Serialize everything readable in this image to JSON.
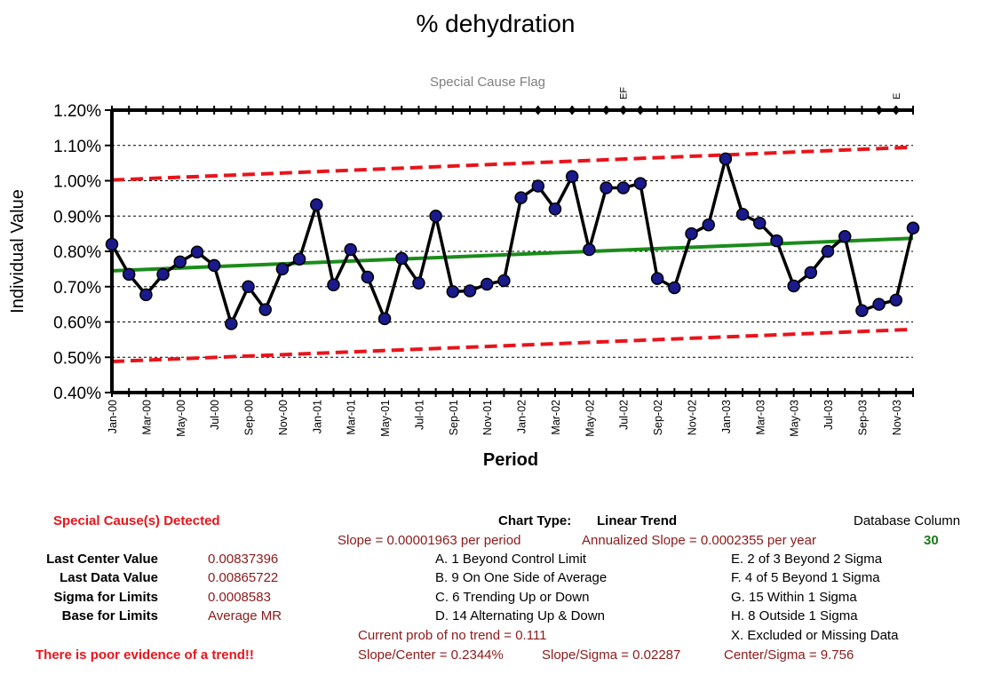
{
  "chart_data": {
    "type": "line",
    "title": "% dehydration",
    "flag_label": "Special Cause Flag",
    "xlabel": "Period",
    "ylabel": "Individual Value",
    "ylim": [
      0.004,
      0.012
    ],
    "y_ticks": [
      "0.40%",
      "0.50%",
      "0.60%",
      "0.70%",
      "0.80%",
      "0.90%",
      "1.00%",
      "1.10%",
      "1.20%"
    ],
    "x_tick_labels": [
      "Jan-00",
      "Mar-00",
      "May-00",
      "Jul-00",
      "Sep-00",
      "Nov-00",
      "Jan-01",
      "Mar-01",
      "May-01",
      "Jul-01",
      "Sep-01",
      "Nov-01",
      "Jan-02",
      "Mar-02",
      "May-02",
      "Jul-02",
      "Sep-02",
      "Nov-02",
      "Jan-03",
      "Mar-03",
      "May-03",
      "Jul-03",
      "Sep-03",
      "Nov-03"
    ],
    "series": [
      {
        "values": [
          0.0082,
          0.00735,
          0.00677,
          0.00735,
          0.0077,
          0.00798,
          0.0076,
          0.00595,
          0.007,
          0.00635,
          0.0075,
          0.00778,
          0.00932,
          0.00705,
          0.00805,
          0.00727,
          0.00609,
          0.0078,
          0.0071,
          0.009,
          0.00686,
          0.00688,
          0.00707,
          0.00717,
          0.00952,
          0.00985,
          0.0092,
          0.01012,
          0.00805,
          0.0098,
          0.0098,
          0.00992,
          0.00723,
          0.00697,
          0.0085,
          0.00875,
          0.01062,
          0.00905,
          0.0088,
          0.0083,
          0.00702,
          0.0074,
          0.008,
          0.00842,
          0.00632,
          0.0065,
          0.00662,
          0.00866
        ]
      }
    ],
    "center_line": {
      "start": 0.00745,
      "end": 0.00837
    },
    "upper_limit": {
      "start": 0.01002,
      "end": 0.01095
    },
    "lower_limit": {
      "start": 0.00488,
      "end": 0.00579
    },
    "flags": [
      {
        "index": 25,
        "label": ""
      },
      {
        "index": 27,
        "label": ""
      },
      {
        "index": 29,
        "label": ""
      },
      {
        "index": 30,
        "label": "EF"
      },
      {
        "index": 31,
        "label": ""
      },
      {
        "index": 45,
        "label": ""
      },
      {
        "index": 46,
        "label": "E"
      }
    ],
    "colors": {
      "data": "#000000",
      "marker": "#1a1a8c",
      "center": "#1a8c1a",
      "limits": "#e8141b"
    }
  },
  "stats": {
    "special_cause": "Special Cause(s) Detected",
    "chart_type_label": "Chart Type:",
    "chart_type_value": "Linear Trend",
    "db_column_label": "Database Column",
    "db_column_value": "30",
    "slope": "Slope = 0.00001963 per period",
    "annualized": "Annualized Slope = 0.0002355 per year",
    "last_center_label": "Last Center Value",
    "last_center_value": "0.00837396",
    "last_data_label": "Last Data Value",
    "last_data_value": "0.00865722",
    "sigma_label": "Sigma for Limits",
    "sigma_value": "0.0008583",
    "base_label": "Base for Limits",
    "base_value": "Average MR",
    "rule_a": "A. 1 Beyond Control Limit",
    "rule_b": "B. 9 On One Side of Average",
    "rule_c": "C. 6 Trending Up or Down",
    "rule_d": "D. 14 Alternating  Up & Down",
    "rule_e": "E.  2 of 3 Beyond 2 Sigma",
    "rule_f": "F.  4 of 5 Beyond 1 Sigma",
    "rule_g": "G.  15 Within 1 Sigma",
    "rule_h": "H.  8 Outside 1 Sigma",
    "rule_x": "X.  Excluded or Missing Data",
    "prob": "Current prob of no trend = 0.111",
    "poor": "There is poor evidence of a trend!!",
    "slope_center": "Slope/Center = 0.2344%",
    "slope_sigma": "Slope/Sigma = 0.02287",
    "center_sigma": "Center/Sigma = 9.756"
  }
}
